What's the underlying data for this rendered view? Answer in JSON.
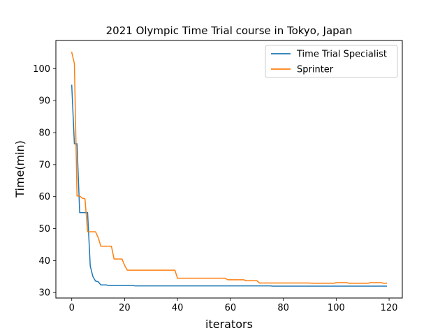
{
  "chart_data": {
    "type": "line",
    "title": "2021 Olympic Time Trial course in Tokyo, Japan",
    "xlabel": "iterators",
    "ylabel": "Time(min)",
    "xlim": [
      -6,
      125
    ],
    "ylim": [
      28.3,
      108.8
    ],
    "xticks": [
      0,
      20,
      40,
      60,
      80,
      100,
      120
    ],
    "yticks": [
      30,
      40,
      50,
      60,
      70,
      80,
      90,
      100
    ],
    "grid": false,
    "legend_position": "top-right",
    "series": [
      {
        "name": "Time Trial Specialist",
        "color": "#1f77b4",
        "points": [
          [
            0,
            94.8
          ],
          [
            1,
            76.5
          ],
          [
            2,
            76.5
          ],
          [
            3,
            55
          ],
          [
            4,
            55
          ],
          [
            5,
            55
          ],
          [
            6,
            55
          ],
          [
            7,
            38.3
          ],
          [
            8,
            35
          ],
          [
            9,
            33.6
          ],
          [
            10,
            33.4
          ],
          [
            11,
            32.4
          ],
          [
            12,
            32.4
          ],
          [
            13,
            32.4
          ],
          [
            14,
            32.2
          ],
          [
            15,
            32.2
          ],
          [
            20,
            32.2
          ],
          [
            23,
            32.2
          ],
          [
            24,
            32.1
          ],
          [
            30,
            32.1
          ],
          [
            40,
            32.1
          ],
          [
            50,
            32.1
          ],
          [
            60,
            32.1
          ],
          [
            70,
            32.1
          ],
          [
            75,
            32.1
          ],
          [
            76,
            32
          ],
          [
            80,
            32
          ],
          [
            90,
            32
          ],
          [
            100,
            32
          ],
          [
            110,
            32
          ],
          [
            119,
            32
          ]
        ]
      },
      {
        "name": "Sprinter",
        "color": "#ff7f0e",
        "points": [
          [
            0,
            105.1
          ],
          [
            1,
            101.6
          ],
          [
            2,
            60.2
          ],
          [
            3,
            60.2
          ],
          [
            4,
            59.5
          ],
          [
            5,
            59.3
          ],
          [
            6,
            49
          ],
          [
            7,
            49
          ],
          [
            8,
            49
          ],
          [
            9,
            49
          ],
          [
            10,
            47.2
          ],
          [
            11,
            44.5
          ],
          [
            12,
            44.5
          ],
          [
            13,
            44.5
          ],
          [
            14,
            44.5
          ],
          [
            15,
            44.5
          ],
          [
            16,
            40.5
          ],
          [
            17,
            40.5
          ],
          [
            18,
            40.5
          ],
          [
            19,
            40.5
          ],
          [
            20,
            38.5
          ],
          [
            21,
            37
          ],
          [
            22,
            37
          ],
          [
            30,
            37
          ],
          [
            38,
            37
          ],
          [
            39,
            37
          ],
          [
            40,
            34.5
          ],
          [
            50,
            34.5
          ],
          [
            58,
            34.5
          ],
          [
            59,
            34
          ],
          [
            60,
            34
          ],
          [
            65,
            34
          ],
          [
            66,
            33.7
          ],
          [
            70,
            33.7
          ],
          [
            71,
            33
          ],
          [
            80,
            33
          ],
          [
            90,
            33
          ],
          [
            91,
            32.9
          ],
          [
            99,
            32.9
          ],
          [
            100,
            33.1
          ],
          [
            104,
            33.1
          ],
          [
            105,
            32.9
          ],
          [
            112,
            32.9
          ],
          [
            113,
            33.1
          ],
          [
            117,
            33.1
          ],
          [
            118,
            32.9
          ],
          [
            119,
            32.9
          ]
        ]
      }
    ]
  }
}
